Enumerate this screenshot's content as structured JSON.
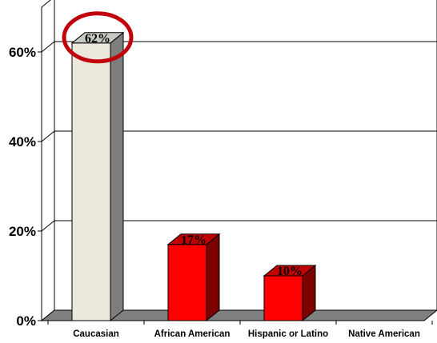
{
  "chart_data": {
    "type": "bar",
    "categories": [
      "Caucasian",
      "African American",
      "Hispanic or Latino",
      "Native American"
    ],
    "values": [
      62,
      17,
      10,
      0
    ],
    "data_labels": [
      "62%",
      "17%",
      "10%",
      ""
    ],
    "y_ticks": [
      {
        "value": 0,
        "label": "0%"
      },
      {
        "value": 20,
        "label": "20%"
      },
      {
        "value": 40,
        "label": "40%"
      },
      {
        "value": 60,
        "label": "60%"
      }
    ],
    "ylim": [
      0,
      70
    ],
    "grid": true,
    "highlight": {
      "category": "Caucasian",
      "shape": "circle-around-label",
      "color": "#c0000a"
    },
    "colors": {
      "highlighted_bar_front": "#ece9dc",
      "highlighted_bar_top": "#c8c8c2",
      "highlighted_bar_side": "#7e7e7e",
      "bar_front": "#ff0000",
      "bar_top": "#c30000",
      "bar_side": "#7c0000",
      "floor": "#808080",
      "axis": "#000000"
    }
  }
}
